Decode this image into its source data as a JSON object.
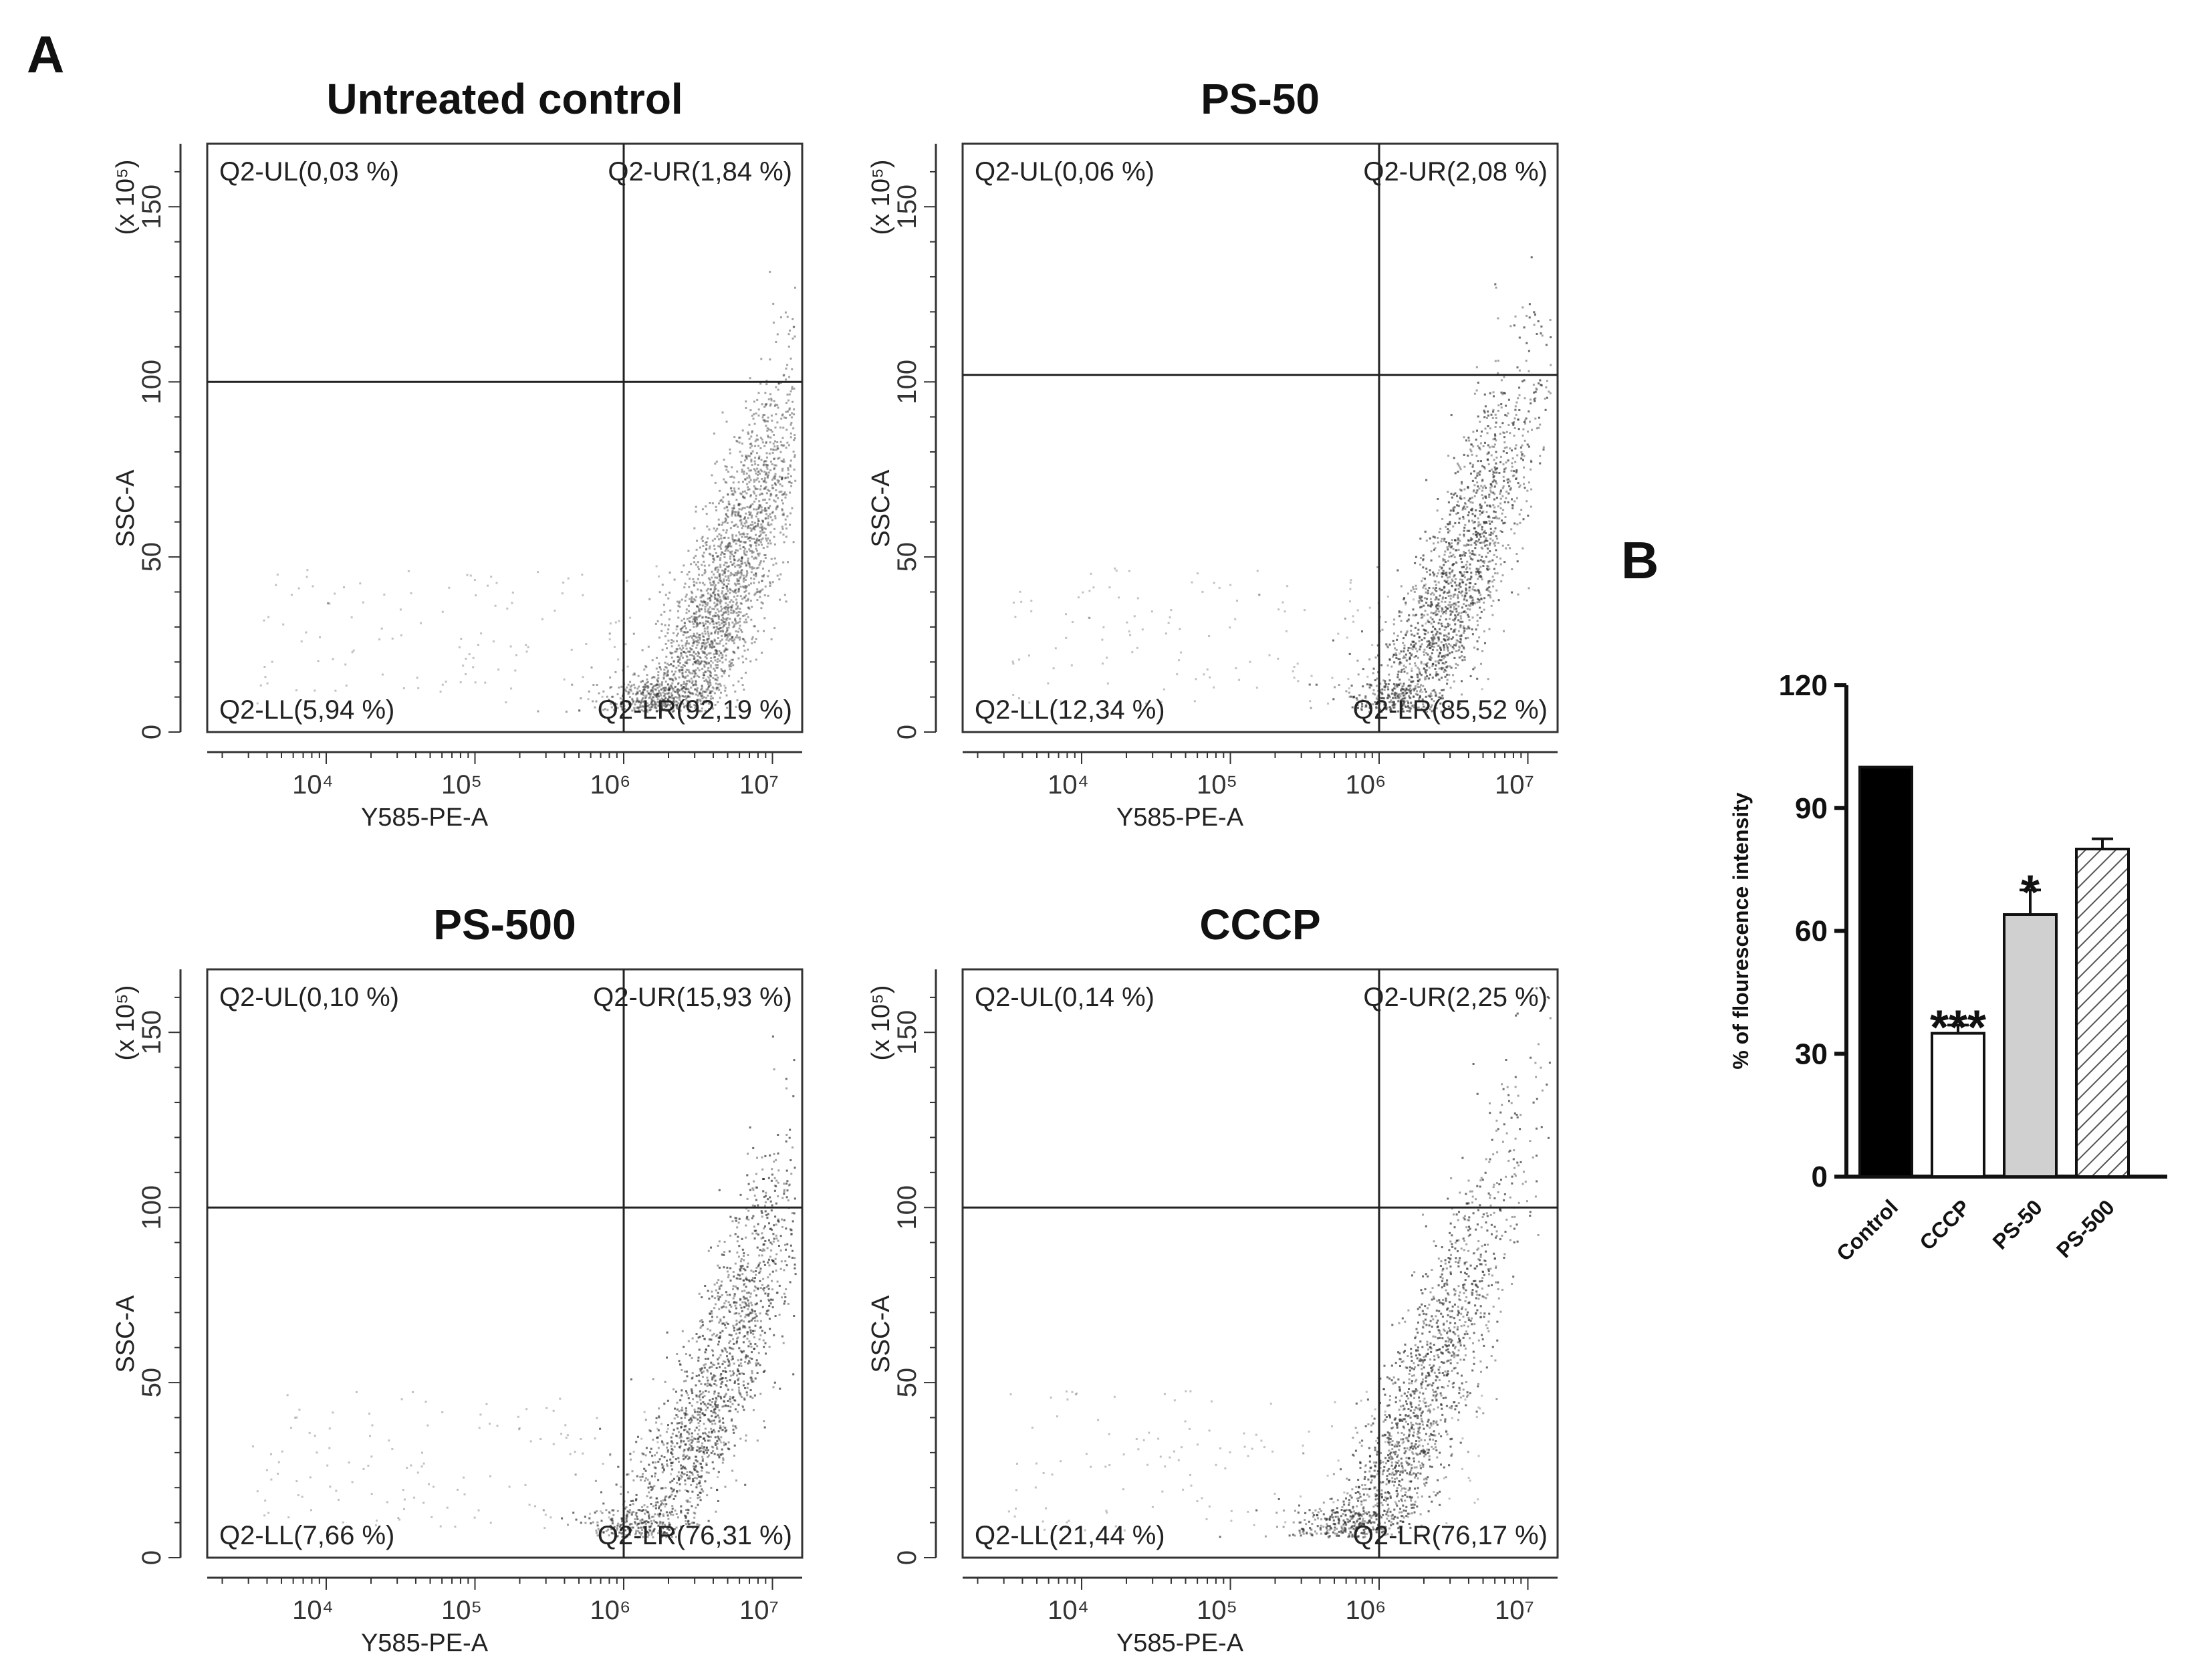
{
  "figure": {
    "panel_a_label": "A",
    "panel_b_label": "B"
  },
  "chart_data": [
    {
      "type": "scatter",
      "title": "Untreated control",
      "xlabel": "Y585-PE-A",
      "ylabel": "SSC-A",
      "y_multiplier": "(x 10⁵)",
      "x_scale": "log",
      "x_ticks": [
        "10⁴",
        "10⁵",
        "10⁶",
        "10⁷"
      ],
      "y_ticks": [
        "0",
        "50",
        "100",
        "150"
      ],
      "ylim": [
        0,
        168
      ],
      "gate": {
        "x": 1000000,
        "y": 100
      },
      "quadrants": {
        "UL": "Q2-UL(0,03 %)",
        "UR": "Q2-UR(1,84 %)",
        "LL": "Q2-LL(5,94 %)",
        "LR": "Q2-LR(92,19 %)"
      },
      "population": {
        "center_log10_x": 6.65,
        "center_y": 35,
        "spread": 0.55
      }
    },
    {
      "type": "scatter",
      "title": "PS-50",
      "xlabel": "Y585-PE-A",
      "ylabel": "SSC-A",
      "y_multiplier": "(x 10⁵)",
      "x_scale": "log",
      "x_ticks": [
        "10⁴",
        "10⁵",
        "10⁶",
        "10⁷"
      ],
      "y_ticks": [
        "0",
        "50",
        "100",
        "150"
      ],
      "ylim": [
        0,
        168
      ],
      "gate": {
        "x": 1000000,
        "y": 102
      },
      "quadrants": {
        "UL": "Q2-UL(0,06 %)",
        "UR": "Q2-UR(2,08 %)",
        "LL": "Q2-LL(12,34 %)",
        "LR": "Q2-LR(85,52 %)"
      },
      "population": {
        "center_log10_x": 6.5,
        "center_y": 38,
        "spread": 0.5
      }
    },
    {
      "type": "scatter",
      "title": "PS-500",
      "xlabel": "Y585-PE-A",
      "ylabel": "SSC-A",
      "y_multiplier": "(x 10⁵)",
      "x_scale": "log",
      "x_ticks": [
        "10⁴",
        "10⁵",
        "10⁶",
        "10⁷"
      ],
      "y_ticks": [
        "0",
        "50",
        "100",
        "150"
      ],
      "ylim": [
        0,
        168
      ],
      "gate": {
        "x": 1000000,
        "y": 100
      },
      "quadrants": {
        "UL": "Q2-UL(0,10 %)",
        "UR": "Q2-UR(15,93 %)",
        "LL": "Q2-LL(7,66 %)",
        "LR": "Q2-LR(76,31 %)"
      },
      "population": {
        "center_log10_x": 6.6,
        "center_y": 45,
        "spread": 0.6
      }
    },
    {
      "type": "scatter",
      "title": "CCCP",
      "xlabel": "Y585-PE-A",
      "ylabel": "SSC-A",
      "y_multiplier": "(x 10⁵)",
      "x_scale": "log",
      "x_ticks": [
        "10⁴",
        "10⁵",
        "10⁶",
        "10⁷"
      ],
      "y_ticks": [
        "0",
        "50",
        "100",
        "150"
      ],
      "ylim": [
        0,
        168
      ],
      "gate": {
        "x": 1000000,
        "y": 100
      },
      "quadrants": {
        "UL": "Q2-UL(0,14 %)",
        "UR": "Q2-UR(2,25 %)",
        "LL": "Q2-LL(21,44 %)",
        "LR": "Q2-LR(76,17 %)"
      },
      "population": {
        "center_log10_x": 6.25,
        "center_y": 38,
        "spread": 0.6
      }
    },
    {
      "type": "bar",
      "title": "",
      "categories": [
        "Control",
        "CCCP",
        "PS-50",
        "PS-500"
      ],
      "values": [
        100,
        35,
        64,
        80
      ],
      "errors": [
        0,
        2,
        6,
        2.5
      ],
      "significance": [
        "",
        "***",
        "*",
        ""
      ],
      "fills": [
        "#000000",
        "#ffffff",
        "#d0d0d0",
        "hatch"
      ],
      "ylabel": "% of flourescence intensity",
      "xlabel": "",
      "y_ticks": [
        "0",
        "30",
        "60",
        "90",
        "120"
      ],
      "ylim": [
        0,
        120
      ]
    }
  ]
}
